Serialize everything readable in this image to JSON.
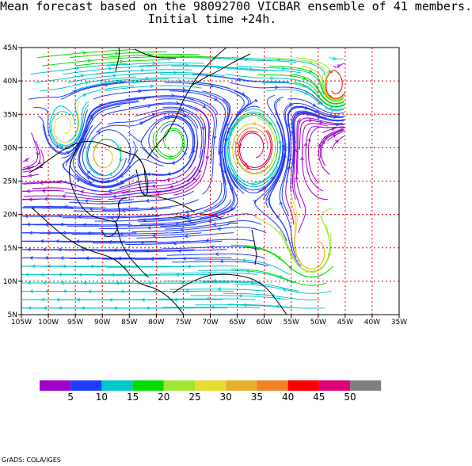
{
  "title": {
    "line1": "Mean forecast based on the 98092700 VICBAR ensemble of 41 members.",
    "line2": "Initial time +24h."
  },
  "map": {
    "lon_min": -105,
    "lon_max": -35,
    "lat_min": 5,
    "lat_max": 45,
    "data_lon_max": -45,
    "lon_ticks": [
      {
        "lon": -105,
        "label": "105W"
      },
      {
        "lon": -100,
        "label": "100W"
      },
      {
        "lon": -95,
        "label": "95W"
      },
      {
        "lon": -90,
        "label": "90W"
      },
      {
        "lon": -85,
        "label": "85W"
      },
      {
        "lon": -80,
        "label": "80W"
      },
      {
        "lon": -75,
        "label": "75W"
      },
      {
        "lon": -70,
        "label": "70W"
      },
      {
        "lon": -65,
        "label": "65W"
      },
      {
        "lon": -60,
        "label": "60W"
      },
      {
        "lon": -55,
        "label": "55W"
      },
      {
        "lon": -50,
        "label": "50W"
      },
      {
        "lon": -45,
        "label": "45W"
      },
      {
        "lon": -40,
        "label": "40W"
      },
      {
        "lon": -35,
        "label": "35W"
      }
    ],
    "lat_ticks": [
      {
        "lat": 5,
        "label": "5N"
      },
      {
        "lat": 10,
        "label": "10N"
      },
      {
        "lat": 15,
        "label": "15N"
      },
      {
        "lat": 20,
        "label": "20N"
      },
      {
        "lat": 25,
        "label": "25N"
      },
      {
        "lat": 30,
        "label": "30N"
      },
      {
        "lat": 35,
        "label": "35N"
      },
      {
        "lat": 40,
        "label": "40N"
      },
      {
        "lat": 45,
        "label": "45N"
      }
    ],
    "grid_color": "#dd0000",
    "coast_color": "#000000",
    "features": [
      {
        "name": "hurricane-circulation",
        "lon": -89.5,
        "lat": 28.7
      },
      {
        "name": "gulf-circulation",
        "lon": -97,
        "lat": 33
      },
      {
        "name": "atlantic-circulation",
        "lon": -51,
        "lat": 14
      }
    ]
  },
  "legend": {
    "colors": [
      "#a000c8",
      "#1e3cff",
      "#00c8c8",
      "#00dc00",
      "#a0e632",
      "#e6dc32",
      "#e6af2d",
      "#f08228",
      "#fa0000",
      "#dc0078",
      "#808080"
    ],
    "labels": [
      "5",
      "10",
      "15",
      "20",
      "25",
      "30",
      "35",
      "40",
      "45",
      "50"
    ]
  },
  "credit": "GrADS: COLA/IGES"
}
